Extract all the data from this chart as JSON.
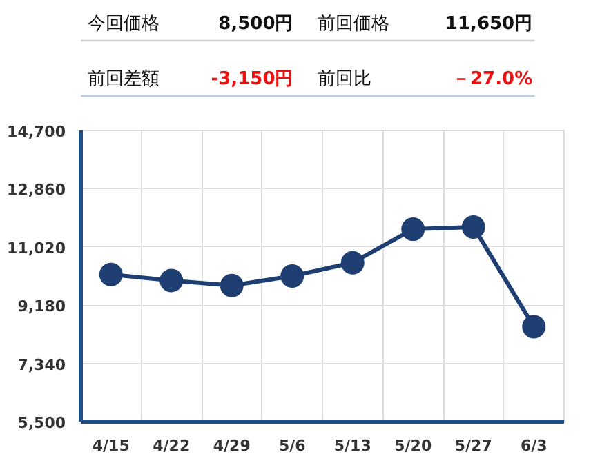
{
  "chart_data": [
    {
      "type": "other",
      "annotations": [
        "今回価格",
        "8,500円",
        "前回価格",
        "11,650円",
        "前回差額",
        "-3,150円",
        "前回比",
        "－27.0%"
      ]
    },
    {
      "type": "line",
      "categories": [
        "4/15",
        "4/22",
        "4/29",
        "5/6",
        "5/13",
        "5/20",
        "5/27",
        "6/3"
      ],
      "series": [
        {
          "color": "#1f3f73",
          "values": [
            10150,
            9960,
            9800,
            10100,
            10520,
            11580,
            11650,
            8500
          ]
        }
      ],
      "ylim": [
        5500,
        14700
      ],
      "yticks": [
        {
          "value": 5500,
          "label": "5,500"
        },
        {
          "value": 7340,
          "label": "7,340"
        },
        {
          "value": 9180,
          "label": "9,180"
        },
        {
          "value": 11020,
          "label": "11,020"
        },
        {
          "value": 12860,
          "label": "12,860"
        },
        {
          "value": 14700,
          "label": "14,700"
        }
      ],
      "grid": true,
      "marker": "circle",
      "line_style": "solid"
    }
  ]
}
